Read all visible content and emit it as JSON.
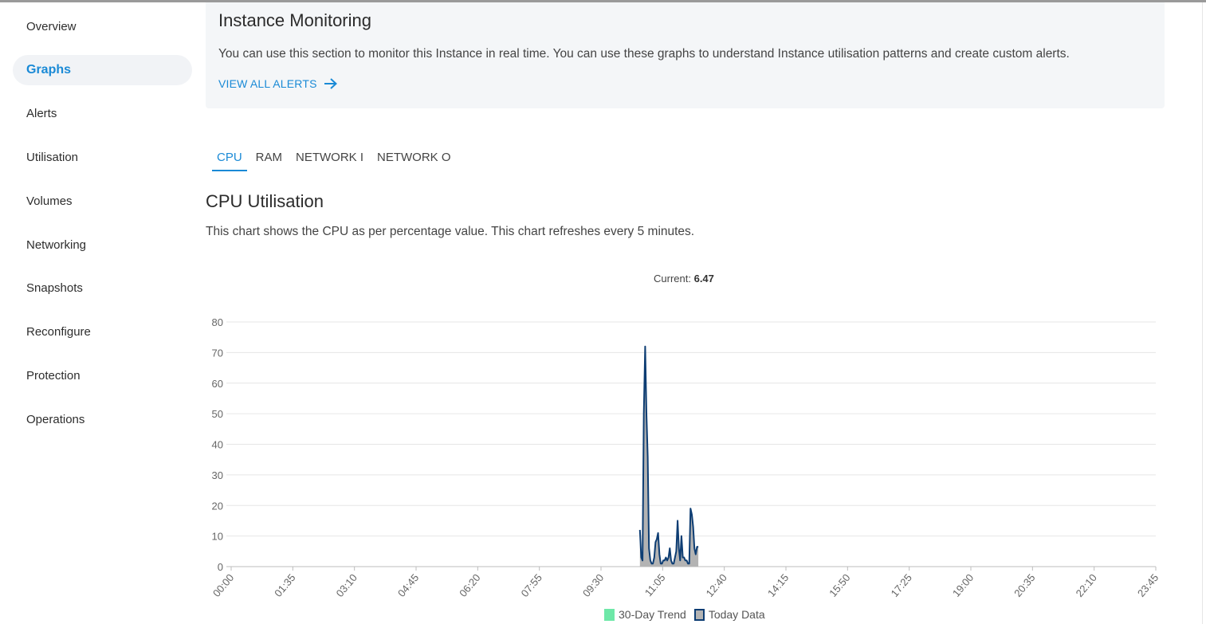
{
  "sidebar": {
    "items": [
      {
        "label": "Overview"
      },
      {
        "label": "Graphs"
      },
      {
        "label": "Alerts"
      },
      {
        "label": "Utilisation"
      },
      {
        "label": "Volumes"
      },
      {
        "label": "Networking"
      },
      {
        "label": "Snapshots"
      },
      {
        "label": "Reconfigure"
      },
      {
        "label": "Protection"
      },
      {
        "label": "Operations"
      }
    ],
    "active_index": 1
  },
  "info": {
    "title": "Instance Monitoring",
    "description": "You can use this section to monitor this Instance in real time. You can use these graphs to understand Instance utilisation patterns and create custom alerts.",
    "link_label": "VIEW ALL ALERTS",
    "link_icon": "arrow-right-icon"
  },
  "tabs": [
    {
      "label": "CPU"
    },
    {
      "label": "RAM"
    },
    {
      "label": "NETWORK I"
    },
    {
      "label": "NETWORK O"
    }
  ],
  "section": {
    "title": "CPU Utilisation",
    "description": "This chart shows the CPU as per percentage value. This chart refreshes every 5 minutes."
  },
  "current": {
    "label": "Current:",
    "value": "6.47"
  },
  "colors": {
    "accent": "#1a8ad6",
    "today_line": "#0d3d73",
    "today_fill": "#b3b3b3",
    "trend": "#6ee8a8"
  },
  "chart_data": {
    "type": "area",
    "ylim": [
      0,
      80
    ],
    "yticks": [
      0,
      10,
      20,
      30,
      40,
      50,
      60,
      70,
      80
    ],
    "xlim_minutes": [
      0,
      1425
    ],
    "x_tick_labels": [
      "00:00",
      "01:35",
      "03:10",
      "04:45",
      "06:20",
      "07:55",
      "09:30",
      "11:05",
      "12:40",
      "14:15",
      "15:50",
      "17:25",
      "19:00",
      "20:35",
      "22:10",
      "23:45"
    ],
    "grid": true,
    "legend_position": "bottom",
    "series": [
      {
        "name": "30-Day Trend",
        "x": [],
        "values": []
      },
      {
        "name": "Today Data",
        "x": [
          "10:30",
          "10:32",
          "10:34",
          "10:36",
          "10:38",
          "10:40",
          "10:42",
          "10:44",
          "10:46",
          "10:48",
          "10:50",
          "10:52",
          "10:54",
          "10:56",
          "10:58",
          "11:00",
          "11:02",
          "11:04",
          "11:06",
          "11:08",
          "11:10",
          "11:12",
          "11:14",
          "11:16",
          "11:18",
          "11:20",
          "11:22",
          "11:24",
          "11:26",
          "11:28",
          "11:30",
          "11:32",
          "11:34",
          "11:36",
          "11:38",
          "11:40",
          "11:42",
          "11:44",
          "11:46",
          "11:48",
          "11:50",
          "11:52",
          "11:54",
          "11:56",
          "11:58",
          "12:00",
          "12:02",
          "12:04",
          "12:06",
          "12:08",
          "12:10",
          "12:12",
          "12:14",
          "12:16",
          "12:18",
          "12:20",
          "12:22",
          "12:24",
          "12:26",
          "12:28",
          "12:30",
          "12:32",
          "12:34",
          "12:36",
          "12:38",
          "12:40",
          "12:42",
          "12:44",
          "12:46",
          "12:48",
          "12:50",
          "12:52",
          "12:54",
          "12:56",
          "12:58",
          "13:00"
        ],
        "values": [
          12,
          3,
          2,
          50,
          72,
          50,
          36,
          6,
          2,
          1,
          1,
          3,
          8,
          9,
          11,
          4,
          1,
          1,
          2,
          2,
          3,
          2,
          3,
          6,
          2,
          1,
          1,
          3,
          5,
          15,
          6,
          2,
          10,
          3,
          3,
          2,
          2,
          1,
          1,
          19,
          17,
          13,
          6,
          4,
          6.5,
          6.47,
          null,
          null,
          null,
          null,
          null,
          null,
          null,
          null,
          null,
          null,
          null,
          null,
          null,
          null,
          null,
          null,
          null,
          null,
          null,
          null,
          null,
          null,
          null,
          null,
          null,
          null,
          null,
          null,
          null,
          null
        ]
      }
    ]
  }
}
